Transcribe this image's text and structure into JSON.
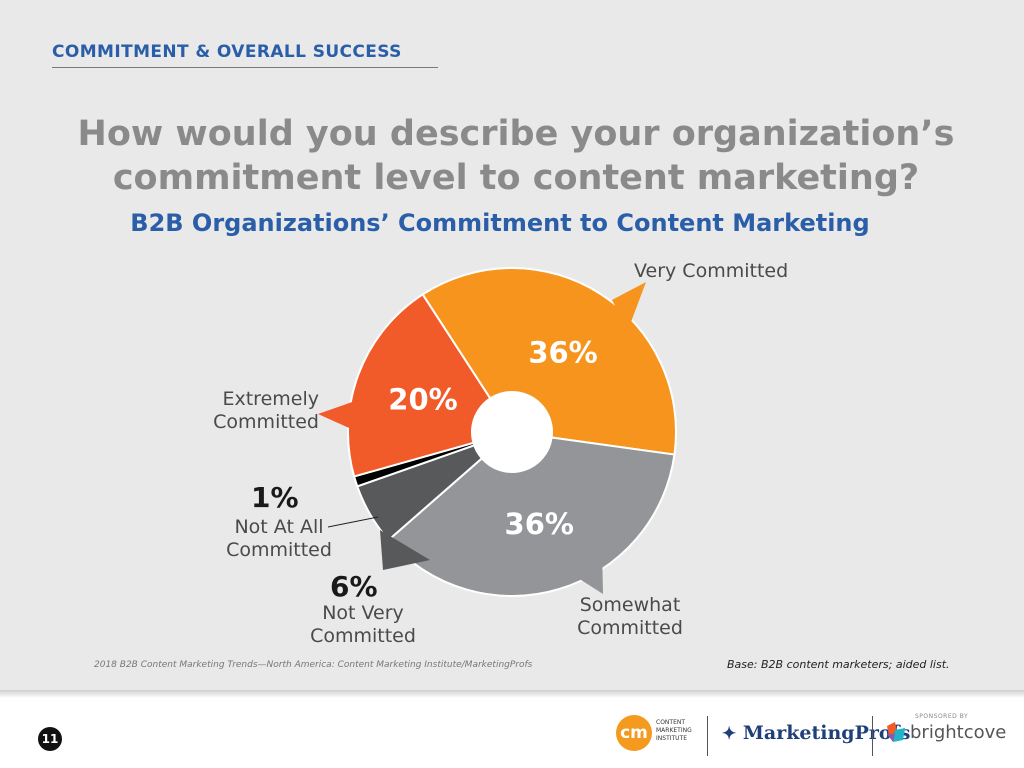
{
  "header": {
    "section_title": "COMMITMENT & OVERALL SUCCESS",
    "question_line1": "How would you describe your organization’s",
    "question_line2": "commitment level to content marketing?"
  },
  "chart_data": {
    "type": "pie",
    "donut": true,
    "title": "B2B Organizations’ Commitment to Content Marketing",
    "slices": [
      {
        "label": "Very Committed",
        "value": 36,
        "display": "36%",
        "color": "#f7941d"
      },
      {
        "label": "Somewhat Committed",
        "value": 36,
        "display": "36%",
        "color": "#939598"
      },
      {
        "label": "Not Very Committed",
        "value": 6,
        "display": "6%",
        "color": "#58595b"
      },
      {
        "label": "Not At All Committed",
        "value": 1,
        "display": "1%",
        "color": "#000000"
      },
      {
        "label": "Extremely Committed",
        "value": 20,
        "display": "20%",
        "color": "#f15a29"
      }
    ]
  },
  "labels": {
    "very": "Very Committed",
    "extremely_l1": "Extremely",
    "extremely_l2": "Committed",
    "notall_pct": "1%",
    "notall_l1": "Not At All",
    "notall_l2": "Committed",
    "notvery_pct": "6%",
    "notvery_l1": "Not Very",
    "notvery_l2": "Committed",
    "somewhat_l1": "Somewhat",
    "somewhat_l2": "Committed"
  },
  "footer": {
    "source": "2018 B2B Content Marketing Trends—North America: Content Marketing Institute/MarketingProfs",
    "base": "Base: B2B content marketers; aided list.",
    "page_number": "11",
    "cmi_mark": "cm",
    "cmi_text": "CONTENT MARKETING INSTITUTE",
    "mp_name": "MarketingProfs",
    "sponsored": "SPONSORED BY",
    "bc_name": "brightcove"
  }
}
